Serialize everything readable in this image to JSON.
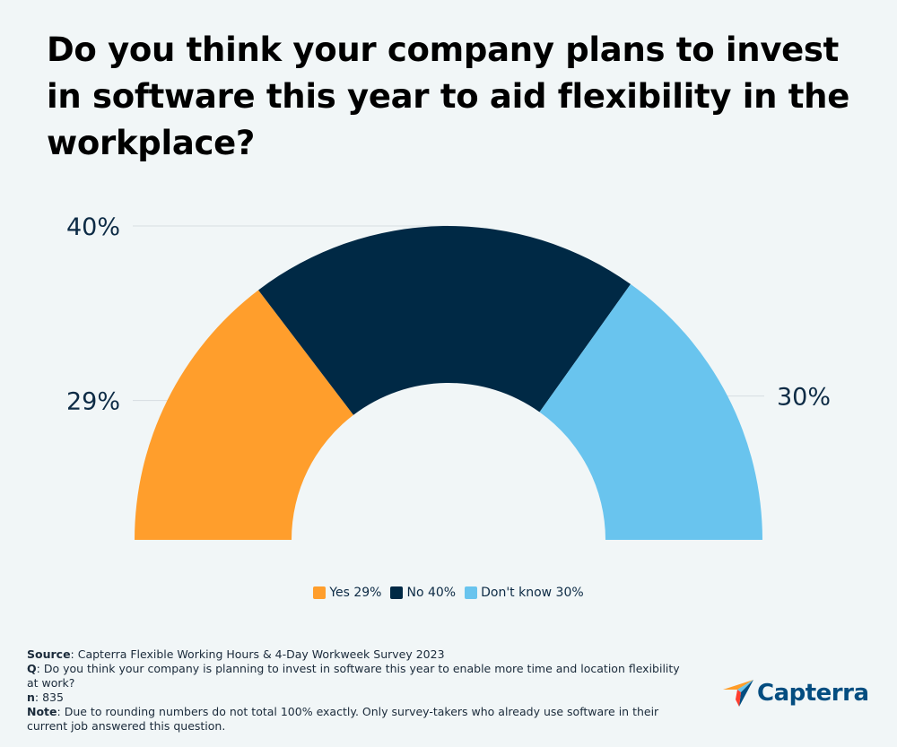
{
  "title": "Do you think your company plans to invest in software this year to aid flexibility in the workplace?",
  "chart_data": {
    "type": "pie",
    "style": "semi-donut",
    "slices": [
      {
        "name": "Yes",
        "value": 29,
        "label": "29%",
        "legend": "Yes 29%",
        "color": "#ff9e2c"
      },
      {
        "name": "No",
        "value": 40,
        "label": "40%",
        "legend": "No 40%",
        "color": "#002945"
      },
      {
        "name": "Don't know",
        "value": 30,
        "label": "30%",
        "legend": "Don't know 30%",
        "color": "#69c4ee"
      }
    ],
    "legend_position": "bottom-center"
  },
  "footer": {
    "source_label": "Source",
    "source_text": ": Capterra Flexible Working Hours & 4-Day Workweek Survey 2023",
    "q_label": "Q",
    "q_text": ": Do you think your company is planning to invest in software this year to enable more time and location flexibility at work?",
    "n_label": "n",
    "n_text": ": 835",
    "note_label": "Note",
    "note_text": ": Due to rounding numbers do not total 100% exactly. Only survey-takers who already use software in their current job answered this question."
  },
  "logo": {
    "text": "Capterra",
    "colors": {
      "orange": "#ff9d28",
      "blue": "#68c5ed",
      "navy": "#044d80",
      "red": "#ff3d2e"
    }
  }
}
